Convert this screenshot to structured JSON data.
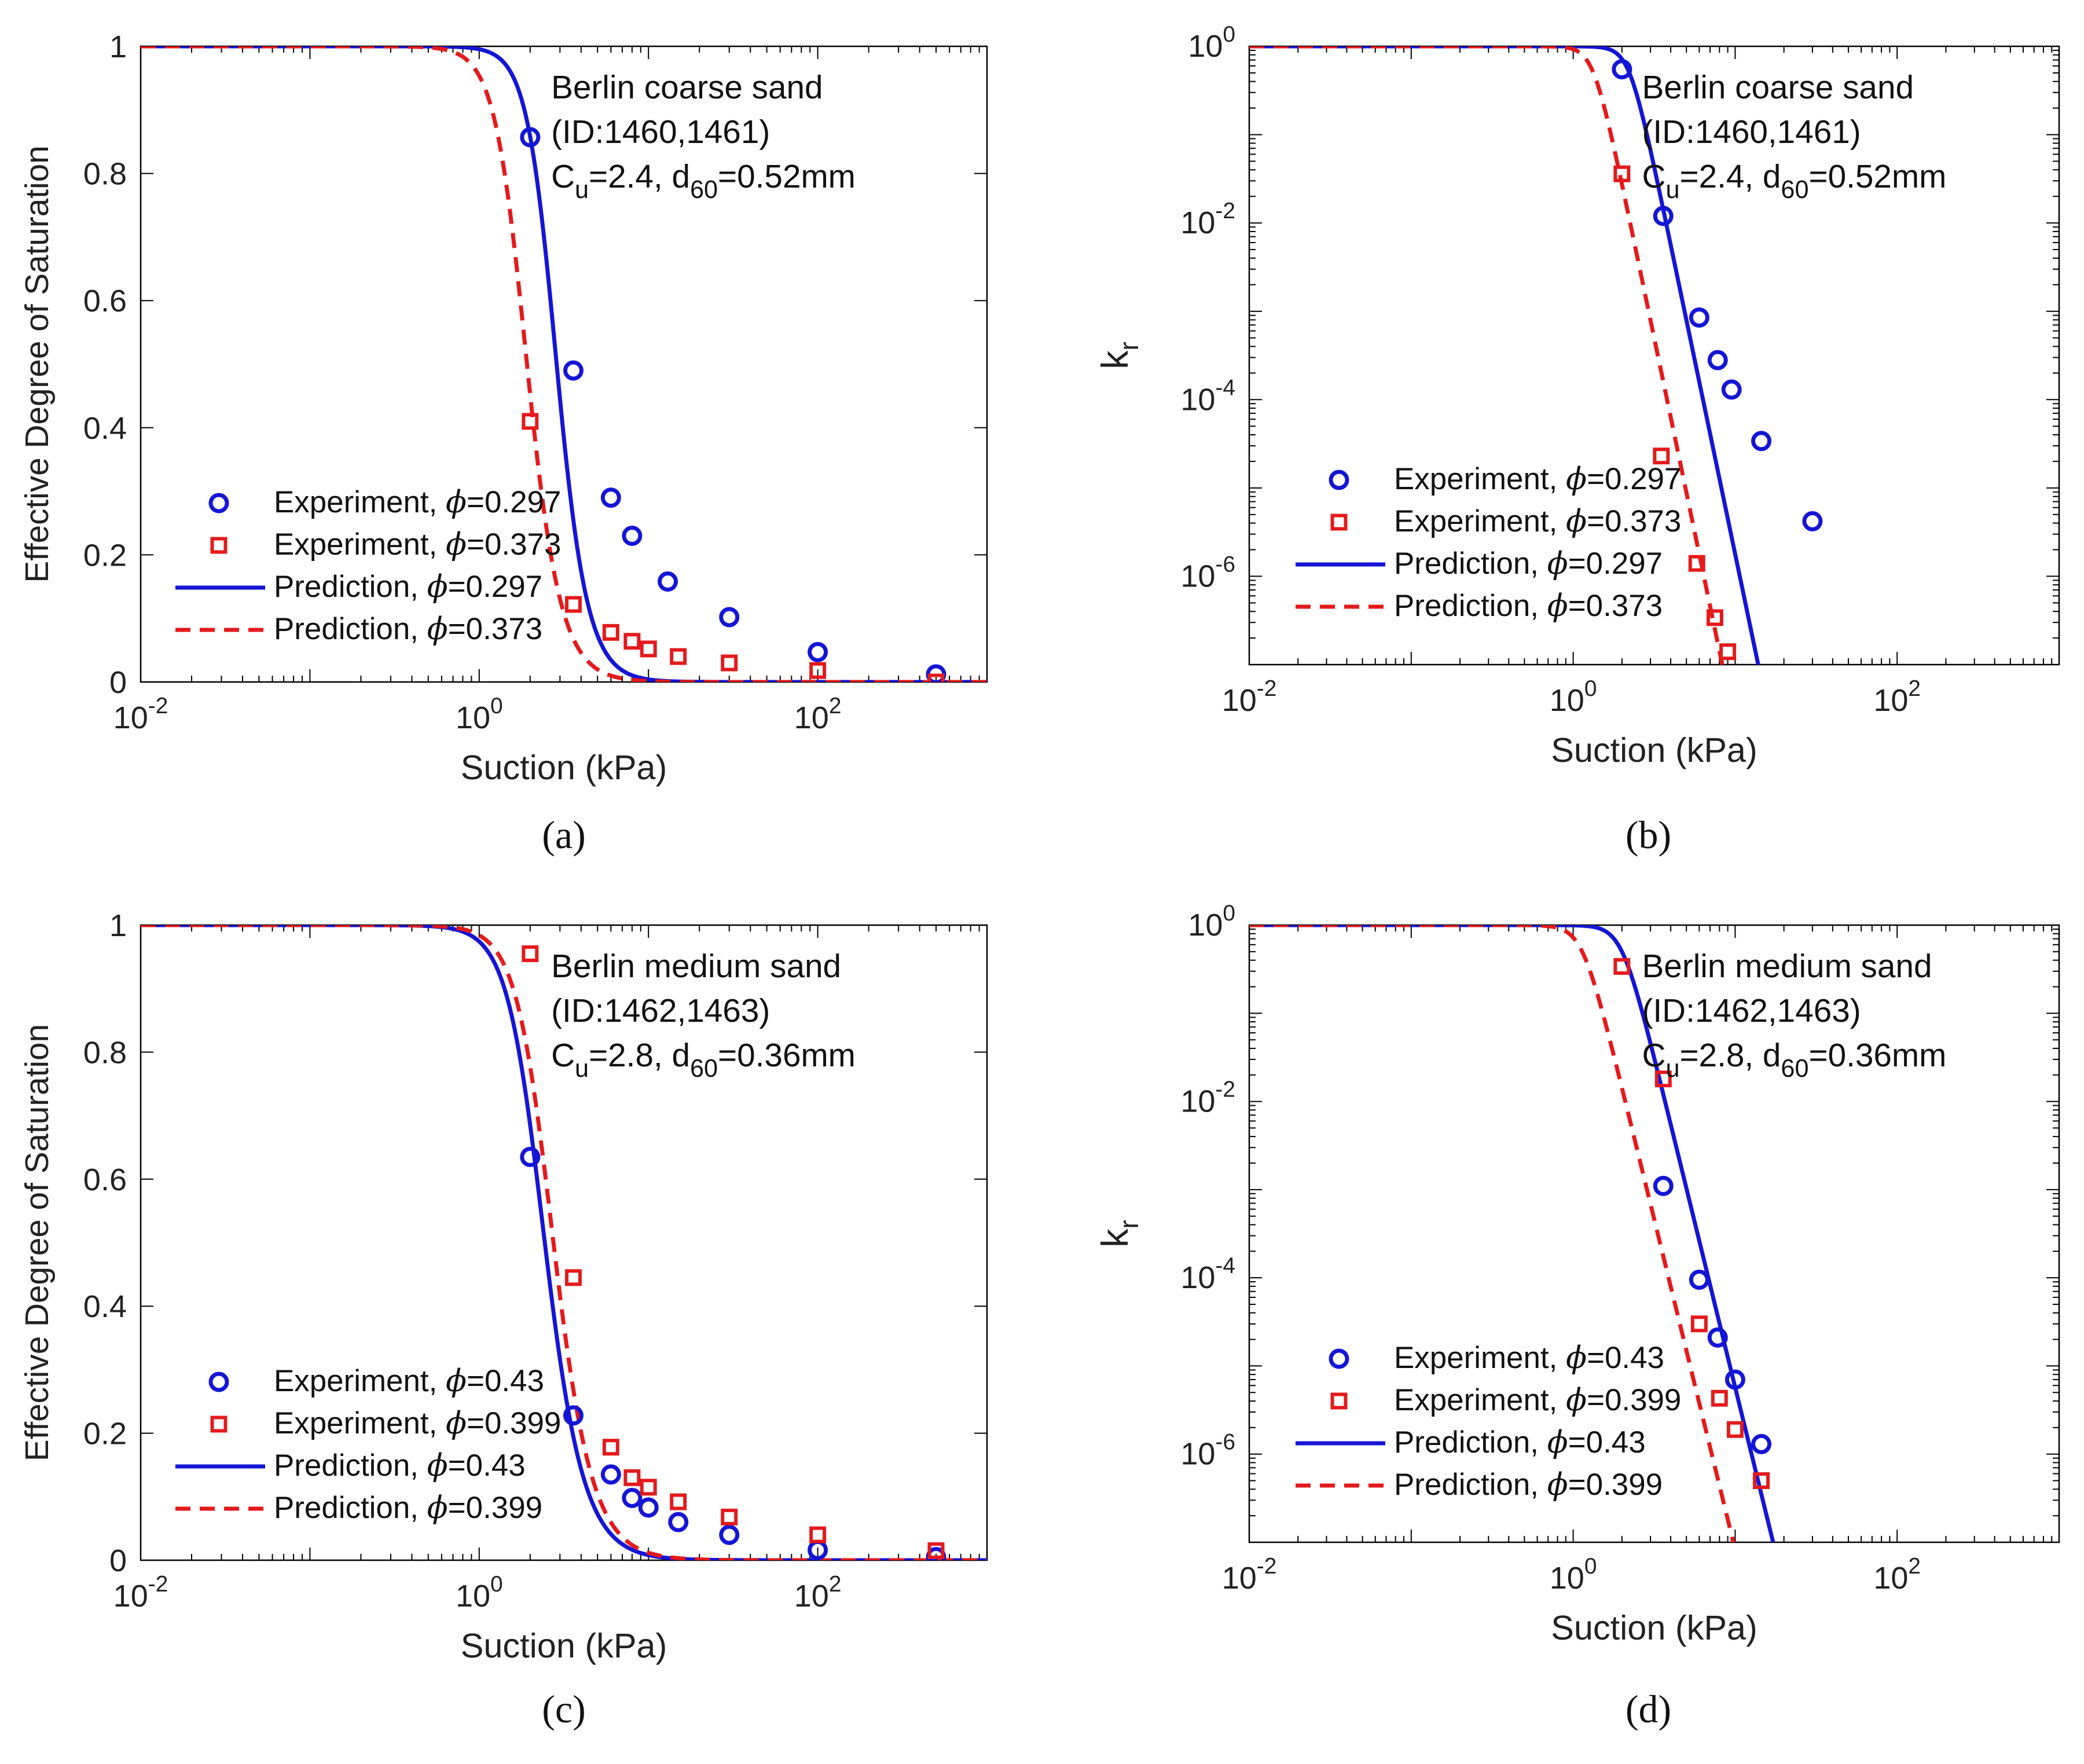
{
  "chart_data": [
    {
      "type": "scatter",
      "panel_label": "(a)",
      "title": "",
      "xlabel": "Suction (kPa)",
      "ylabel": "Effective Degree of Saturation",
      "xscale": "log",
      "yscale": "linear",
      "xlim": [
        0.01,
        1000
      ],
      "ylim": [
        0,
        1
      ],
      "xticks": [
        {
          "v": 0.01,
          "label": "10",
          "exp": "-2"
        },
        {
          "v": 1,
          "label": "10",
          "exp": "0"
        },
        {
          "v": 100,
          "label": "10",
          "exp": "2"
        }
      ],
      "yticks": [
        {
          "v": 0,
          "label": "0"
        },
        {
          "v": 0.2,
          "label": "0.2"
        },
        {
          "v": 0.4,
          "label": "0.4"
        },
        {
          "v": 0.6,
          "label": "0.6"
        },
        {
          "v": 0.8,
          "label": "0.8"
        },
        {
          "v": 1,
          "label": "1"
        }
      ],
      "annotation": {
        "lines": [
          {
            "text": "Berlin coarse sand"
          },
          {
            "text": "(ID:1460,1461)"
          },
          {
            "parts": [
              {
                "t": "C"
              },
              {
                "t": "u",
                "sub": true
              },
              {
                "t": "=2.4, d"
              },
              {
                "t": "60",
                "sub": true
              },
              {
                "t": "=0.52mm"
              }
            ]
          }
        ]
      },
      "legend": {
        "position": "lower-left",
        "entries": [
          {
            "name": "Experiment, ",
            "phi": "=0.297",
            "ref": "exp1"
          },
          {
            "name": "Experiment, ",
            "phi": "=0.373",
            "ref": "exp2"
          },
          {
            "name": "Prediction, ",
            "phi": "=0.297",
            "ref": "pred1"
          },
          {
            "name": "Prediction, ",
            "phi": "=0.373",
            "ref": "pred2"
          }
        ]
      },
      "series": [
        {
          "id": "exp1",
          "name": "Experiment, φ=0.297",
          "kind": "marker",
          "marker": "circle",
          "color": "#1515d6",
          "x": [
            2.0,
            3.6,
            6.0,
            8.0,
            13.0,
            30.0,
            100.0,
            500.0
          ],
          "y": [
            0.857,
            0.49,
            0.29,
            0.23,
            0.158,
            0.102,
            0.047,
            0.012
          ]
        },
        {
          "id": "exp2",
          "name": "Experiment, φ=0.373",
          "kind": "marker",
          "marker": "square",
          "color": "#e41a1c",
          "x": [
            2.0,
            3.6,
            6.0,
            8.0,
            10.0,
            15.0,
            30.0,
            100.0,
            500.0
          ],
          "y": [
            0.41,
            0.122,
            0.078,
            0.064,
            0.052,
            0.04,
            0.03,
            0.018,
            0.0
          ]
        },
        {
          "id": "pred1",
          "name": "Prediction, φ=0.297",
          "kind": "line",
          "dash": false,
          "color": "#1515d6",
          "model": "vg",
          "params": {
            "alpha": 0.37,
            "n": 5.2
          }
        },
        {
          "id": "pred2",
          "name": "Prediction, φ=0.373",
          "kind": "line",
          "dash": true,
          "color": "#e41a1c",
          "model": "vg",
          "params": {
            "alpha": 0.56,
            "n": 4.8
          }
        }
      ]
    },
    {
      "type": "scatter",
      "panel_label": "(b)",
      "title": "",
      "xlabel": "Suction (kPa)",
      "ylabel": "k_r",
      "ylabel_main": "k",
      "ylabel_sub": "r",
      "xscale": "log",
      "yscale": "log",
      "xlim": [
        0.01,
        1000
      ],
      "ylim": [
        1e-07,
        1
      ],
      "xticks": [
        {
          "v": 0.01,
          "label": "10",
          "exp": "-2"
        },
        {
          "v": 1,
          "label": "10",
          "exp": "0"
        },
        {
          "v": 100,
          "label": "10",
          "exp": "2"
        }
      ],
      "yticks": [
        {
          "v": 1,
          "label": "10",
          "exp": "0"
        },
        {
          "v": 0.01,
          "label": "10",
          "exp": "-2"
        },
        {
          "v": 0.0001,
          "label": "10",
          "exp": "-4"
        },
        {
          "v": 1e-06,
          "label": "10",
          "exp": "-6"
        }
      ],
      "annotation": {
        "lines": [
          {
            "text": "Berlin coarse sand"
          },
          {
            "text": "(ID:1460,1461)"
          },
          {
            "parts": [
              {
                "t": "C"
              },
              {
                "t": "u",
                "sub": true
              },
              {
                "t": "=2.4, d"
              },
              {
                "t": "60",
                "sub": true
              },
              {
                "t": "=0.52mm"
              }
            ]
          }
        ]
      },
      "legend": {
        "position": "lower-left",
        "entries": [
          {
            "name": "Experiment, ",
            "phi": "=0.297",
            "ref": "exp1"
          },
          {
            "name": "Experiment, ",
            "phi": "=0.373",
            "ref": "exp2"
          },
          {
            "name": "Prediction, ",
            "phi": "=0.297",
            "ref": "pred1"
          },
          {
            "name": "Prediction, ",
            "phi": "=0.373",
            "ref": "pred2"
          }
        ]
      },
      "series": [
        {
          "id": "exp1",
          "name": "Experiment, φ=0.297",
          "kind": "marker",
          "marker": "circle",
          "color": "#1515d6",
          "x": [
            2.0,
            3.6,
            6.0,
            7.8,
            9.5,
            14.5,
            30.0
          ],
          "y": [
            0.55,
            0.012,
            0.00085,
            0.00028,
            0.00013,
            3.4e-05,
            4.2e-06
          ]
        },
        {
          "id": "exp2",
          "name": "Experiment, φ=0.373",
          "kind": "marker",
          "marker": "square",
          "color": "#e41a1c",
          "x": [
            2.0,
            3.5,
            5.8,
            7.5,
            9.0
          ],
          "y": [
            0.036,
            2.3e-05,
            1.4e-06,
            3.4e-07,
            1.4e-07
          ]
        },
        {
          "id": "pred1",
          "name": "Prediction, φ=0.297",
          "kind": "line",
          "dash": false,
          "color": "#1515d6",
          "model": "kr",
          "params": {
            "a": 0.45,
            "b": 8.8
          }
        },
        {
          "id": "pred2",
          "name": "Prediction, φ=0.373",
          "kind": "line",
          "dash": true,
          "color": "#e41a1c",
          "model": "kr",
          "params": {
            "a": 0.75,
            "b": 8.8
          }
        }
      ]
    },
    {
      "type": "scatter",
      "panel_label": "(c)",
      "title": "",
      "xlabel": "Suction (kPa)",
      "ylabel": "Effective Degree of Saturation",
      "xscale": "log",
      "yscale": "linear",
      "xlim": [
        0.01,
        1000
      ],
      "ylim": [
        0,
        1
      ],
      "xticks": [
        {
          "v": 0.01,
          "label": "10",
          "exp": "-2"
        },
        {
          "v": 1,
          "label": "10",
          "exp": "0"
        },
        {
          "v": 100,
          "label": "10",
          "exp": "2"
        }
      ],
      "yticks": [
        {
          "v": 0,
          "label": "0"
        },
        {
          "v": 0.2,
          "label": "0.2"
        },
        {
          "v": 0.4,
          "label": "0.4"
        },
        {
          "v": 0.6,
          "label": "0.6"
        },
        {
          "v": 0.8,
          "label": "0.8"
        },
        {
          "v": 1,
          "label": "1"
        }
      ],
      "annotation": {
        "lines": [
          {
            "text": "Berlin medium sand"
          },
          {
            "text": "(ID:1462,1463)"
          },
          {
            "parts": [
              {
                "t": "C"
              },
              {
                "t": "u",
                "sub": true
              },
              {
                "t": "=2.8, d"
              },
              {
                "t": "60",
                "sub": true
              },
              {
                "t": "=0.36mm"
              }
            ]
          }
        ]
      },
      "legend": {
        "position": "lower-left",
        "entries": [
          {
            "name": "Experiment, ",
            "phi": "=0.43",
            "ref": "exp1"
          },
          {
            "name": "Experiment, ",
            "phi": "=0.399",
            "ref": "exp2"
          },
          {
            "name": "Prediction, ",
            "phi": "=0.43",
            "ref": "pred1"
          },
          {
            "name": "Prediction, ",
            "phi": "=0.399",
            "ref": "pred2"
          }
        ]
      },
      "series": [
        {
          "id": "exp1",
          "name": "Experiment, φ=0.43",
          "kind": "marker",
          "marker": "circle",
          "color": "#1515d6",
          "x": [
            2.0,
            3.6,
            6.0,
            8.0,
            10.0,
            15.0,
            30.0,
            100.0,
            500.0
          ],
          "y": [
            0.635,
            0.228,
            0.135,
            0.098,
            0.083,
            0.06,
            0.04,
            0.016,
            0.005
          ]
        },
        {
          "id": "exp2",
          "name": "Experiment, φ=0.399",
          "kind": "marker",
          "marker": "square",
          "color": "#e41a1c",
          "x": [
            2.0,
            3.6,
            6.0,
            8.0,
            10.0,
            15.0,
            30.0,
            100.0,
            500.0
          ],
          "y": [
            0.955,
            0.445,
            0.178,
            0.13,
            0.115,
            0.092,
            0.068,
            0.04,
            0.015
          ]
        },
        {
          "id": "pred1",
          "name": "Prediction, φ=0.43",
          "kind": "line",
          "dash": false,
          "color": "#1515d6",
          "model": "vg",
          "params": {
            "alpha": 0.45,
            "n": 4.2
          }
        },
        {
          "id": "pred2",
          "name": "Prediction, φ=0.399",
          "kind": "line",
          "dash": true,
          "color": "#e41a1c",
          "model": "vg",
          "params": {
            "alpha": 0.4,
            "n": 4.2
          }
        }
      ]
    },
    {
      "type": "scatter",
      "panel_label": "(d)",
      "title": "",
      "xlabel": "Suction (kPa)",
      "ylabel": "k_r",
      "ylabel_main": "k",
      "ylabel_sub": "r",
      "xscale": "log",
      "yscale": "log",
      "xlim": [
        0.01,
        1000
      ],
      "ylim": [
        1e-07,
        1
      ],
      "xticks": [
        {
          "v": 0.01,
          "label": "10",
          "exp": "-2"
        },
        {
          "v": 1,
          "label": "10",
          "exp": "0"
        },
        {
          "v": 100,
          "label": "10",
          "exp": "2"
        }
      ],
      "yticks": [
        {
          "v": 1,
          "label": "10",
          "exp": "0"
        },
        {
          "v": 0.01,
          "label": "10",
          "exp": "-2"
        },
        {
          "v": 0.0001,
          "label": "10",
          "exp": "-4"
        },
        {
          "v": 1e-06,
          "label": "10",
          "exp": "-6"
        }
      ],
      "annotation": {
        "lines": [
          {
            "text": "Berlin medium sand"
          },
          {
            "text": "(ID:1462,1463)"
          },
          {
            "parts": [
              {
                "t": "C"
              },
              {
                "t": "u",
                "sub": true
              },
              {
                "t": "=2.8, d"
              },
              {
                "t": "60",
                "sub": true
              },
              {
                "t": "=0.36mm"
              }
            ]
          }
        ]
      },
      "legend": {
        "position": "lower-left",
        "entries": [
          {
            "name": "Experiment, ",
            "phi": "=0.43",
            "ref": "exp1"
          },
          {
            "name": "Experiment, ",
            "phi": "=0.399",
            "ref": "exp2"
          },
          {
            "name": "Prediction, ",
            "phi": "=0.43",
            "ref": "pred1"
          },
          {
            "name": "Prediction, ",
            "phi": "=0.399",
            "ref": "pred2"
          }
        ]
      },
      "series": [
        {
          "id": "exp1",
          "name": "Experiment, φ=0.43",
          "kind": "marker",
          "marker": "circle",
          "color": "#1515d6",
          "x": [
            3.6,
            6.0,
            7.8,
            10.0,
            14.5
          ],
          "y": [
            0.0011,
            9.5e-05,
            2.1e-05,
            7e-06,
            1.3e-06
          ]
        },
        {
          "id": "exp2",
          "name": "Experiment, φ=0.399",
          "kind": "marker",
          "marker": "square",
          "color": "#e41a1c",
          "x": [
            2.0,
            3.6,
            6.0,
            8.0,
            10.0,
            14.5
          ],
          "y": [
            0.34,
            0.018,
            3e-05,
            4.3e-06,
            1.9e-06,
            5e-07
          ]
        },
        {
          "id": "pred1",
          "name": "Prediction, φ=0.43",
          "kind": "line",
          "dash": false,
          "color": "#1515d6",
          "model": "kr",
          "params": {
            "a": 0.5,
            "b": 7.5
          }
        },
        {
          "id": "pred2",
          "name": "Prediction, φ=0.399",
          "kind": "line",
          "dash": true,
          "color": "#e41a1c",
          "model": "kr",
          "params": {
            "a": 0.88,
            "b": 7.5
          }
        }
      ]
    }
  ]
}
